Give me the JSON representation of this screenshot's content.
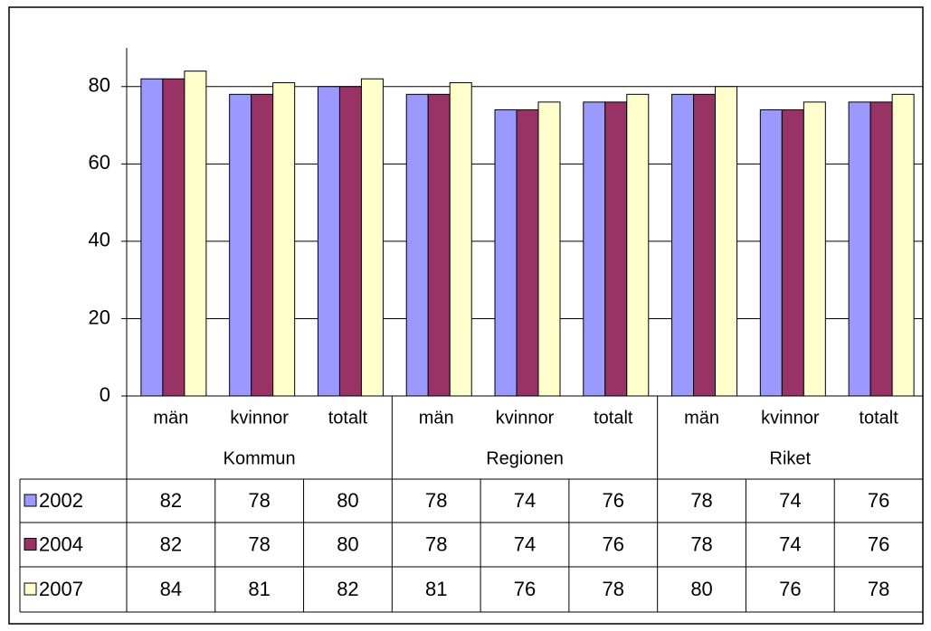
{
  "chart_data": {
    "type": "bar",
    "categories": [
      "män",
      "kvinnor",
      "totalt",
      "män",
      "kvinnor",
      "totalt",
      "män",
      "kvinnor",
      "totalt"
    ],
    "groups": [
      "Kommun",
      "Regionen",
      "Riket"
    ],
    "series": [
      {
        "name": "2002",
        "color": "#9999ff",
        "values": [
          82,
          78,
          80,
          78,
          74,
          76,
          78,
          74,
          76
        ]
      },
      {
        "name": "2004",
        "color": "#993366",
        "values": [
          82,
          78,
          80,
          78,
          74,
          76,
          78,
          74,
          76
        ]
      },
      {
        "name": "2007",
        "color": "#ffffcc",
        "values": [
          84,
          81,
          82,
          81,
          76,
          78,
          80,
          76,
          78
        ]
      }
    ],
    "ylim": [
      0,
      90
    ],
    "yticks": [
      0,
      20,
      40,
      60,
      80
    ],
    "grid": true
  }
}
